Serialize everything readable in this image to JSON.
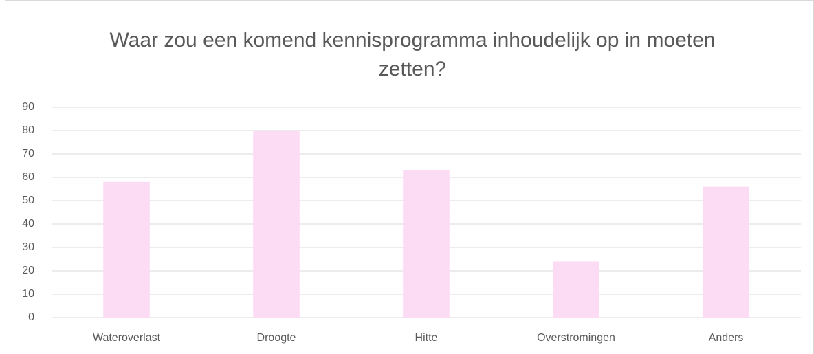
{
  "chart_data": {
    "type": "bar",
    "title": "Waar zou een komend kennisprogramma inhoudelijk op in moeten zetten?",
    "categories": [
      "Wateroverlast",
      "Droogte",
      "Hitte",
      "Overstromingen",
      "Anders"
    ],
    "values": [
      58,
      80,
      63,
      24,
      56
    ],
    "color": "#fcdcf4",
    "ylim": [
      0,
      90
    ],
    "yticks": [
      0,
      10,
      20,
      30,
      40,
      50,
      60,
      70,
      80,
      90
    ],
    "grid": true
  }
}
